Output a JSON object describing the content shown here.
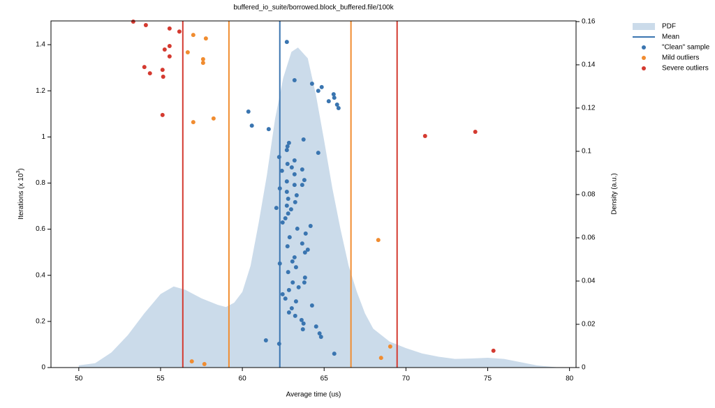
{
  "chart_data": {
    "type": "scatter",
    "title": "buffered_io_suite/borrowed.block_buffered.file/100k",
    "xlabel": "Average time (us)",
    "ylabel": {
      "text": "Iterations (x 10",
      "sup": "3",
      "end": ")"
    },
    "y2label": "Density (a.u.)",
    "xlim": [
      48.3,
      80.4
    ],
    "xticks": [
      50,
      55,
      60,
      65,
      70,
      75,
      80
    ],
    "ylim": [
      0,
      1.503
    ],
    "yticks": [
      0,
      0.2,
      0.4,
      0.6,
      0.8,
      1,
      1.2,
      1.4
    ],
    "y2lim": [
      0,
      0.1603
    ],
    "y2ticks": [
      0,
      0.02,
      0.04,
      0.06,
      0.08,
      0.1,
      0.12,
      0.14,
      0.16
    ],
    "legend": "outside-right-top",
    "pdf": {
      "name": "PDF",
      "color": "#cbdbea",
      "axis": "y2",
      "x": [
        50,
        51,
        52,
        53,
        54,
        55,
        55.8,
        56.5,
        57.5,
        58.5,
        59,
        59.5,
        60,
        60.5,
        61,
        61.5,
        62,
        62.5,
        63,
        63.4,
        64,
        64.5,
        65,
        65.5,
        66,
        66.5,
        67,
        67.5,
        68,
        69,
        70,
        71,
        72,
        73,
        74,
        75,
        76,
        77,
        78,
        79,
        79.5
      ],
      "values": [
        0.001,
        0.002,
        0.007,
        0.015,
        0.025,
        0.034,
        0.0375,
        0.036,
        0.032,
        0.029,
        0.028,
        0.03,
        0.035,
        0.047,
        0.067,
        0.089,
        0.115,
        0.134,
        0.146,
        0.148,
        0.143,
        0.126,
        0.105,
        0.083,
        0.064,
        0.047,
        0.035,
        0.025,
        0.018,
        0.012,
        0.009,
        0.0065,
        0.005,
        0.004,
        0.0042,
        0.0045,
        0.004,
        0.0025,
        0.001,
        0.0003,
        0
      ]
    },
    "mean": {
      "name": "Mean",
      "color": "#3a75b0",
      "value": 62.29
    },
    "fences": [
      {
        "color": "#f08c30",
        "values": [
          59.18,
          66.64
        ]
      },
      {
        "color": "#d43a30",
        "values": [
          56.36,
          69.46
        ]
      }
    ],
    "series": [
      {
        "name": "\"Clean\" sample",
        "color": "#3a75b0",
        "x": [
          62.72,
          63.19,
          64.26,
          64.85,
          64.64,
          65.28,
          65.62,
          65.58,
          65.79,
          65.88,
          60.37,
          60.58,
          61.61,
          62.85,
          62.76,
          62.72,
          63.74,
          64.64,
          62.25,
          63.19,
          62.76,
          63.02,
          63.66,
          62.42,
          63.19,
          63.79,
          62.72,
          63.19,
          62.29,
          63.66,
          62.72,
          63.32,
          62.8,
          62.08,
          63.23,
          62.72,
          62.98,
          62.8,
          62.63,
          62.46,
          64.17,
          63.36,
          63.87,
          62.89,
          63.66,
          64.0,
          63.83,
          62.76,
          63.19,
          63.06,
          62.29,
          63.28,
          62.8,
          63.83,
          63.08,
          63.79,
          63.44,
          62.85,
          62.46,
          62.63,
          63.28,
          64.26,
          63.02,
          62.85,
          63.23,
          63.62,
          63.74,
          64.51,
          63.7,
          64.72,
          64.81,
          61.44,
          62.25,
          65.62
        ],
        "values": [
          1.412,
          1.246,
          1.231,
          1.216,
          1.2,
          1.155,
          1.17,
          1.185,
          1.14,
          1.125,
          1.11,
          1.049,
          1.034,
          0.974,
          0.959,
          0.943,
          0.989,
          0.931,
          0.913,
          0.898,
          0.883,
          0.868,
          0.859,
          0.853,
          0.838,
          0.813,
          0.807,
          0.792,
          0.777,
          0.792,
          0.762,
          0.747,
          0.732,
          0.692,
          0.717,
          0.702,
          0.686,
          0.668,
          0.647,
          0.629,
          0.614,
          0.602,
          0.581,
          0.565,
          0.538,
          0.511,
          0.499,
          0.526,
          0.478,
          0.46,
          0.451,
          0.435,
          0.414,
          0.39,
          0.369,
          0.369,
          0.348,
          0.336,
          0.318,
          0.299,
          0.287,
          0.269,
          0.257,
          0.239,
          0.224,
          0.206,
          0.191,
          0.178,
          0.166,
          0.148,
          0.133,
          0.118,
          0.103,
          0.06
        ]
      },
      {
        "name": "Mild outliers",
        "color": "#f08c30",
        "x": [
          57.0,
          57.77,
          56.66,
          57.6,
          57.6,
          58.24,
          57.0,
          68.31,
          69.04,
          68.48,
          56.91,
          57.68
        ],
        "values": [
          1.442,
          1.427,
          1.367,
          1.337,
          1.321,
          1.08,
          1.064,
          0.553,
          0.091,
          0.042,
          0.027,
          0.015
        ]
      },
      {
        "name": "Severe outliers",
        "color": "#d43a30",
        "x": [
          53.33,
          54.1,
          55.55,
          56.15,
          55.55,
          55.25,
          55.55,
          54.01,
          54.35,
          55.12,
          55.16,
          55.12,
          71.17,
          74.24,
          75.35
        ],
        "values": [
          1.5,
          1.485,
          1.47,
          1.457,
          1.394,
          1.379,
          1.349,
          1.303,
          1.276,
          1.291,
          1.261,
          1.095,
          1.004,
          1.022,
          0.073
        ]
      }
    ]
  }
}
